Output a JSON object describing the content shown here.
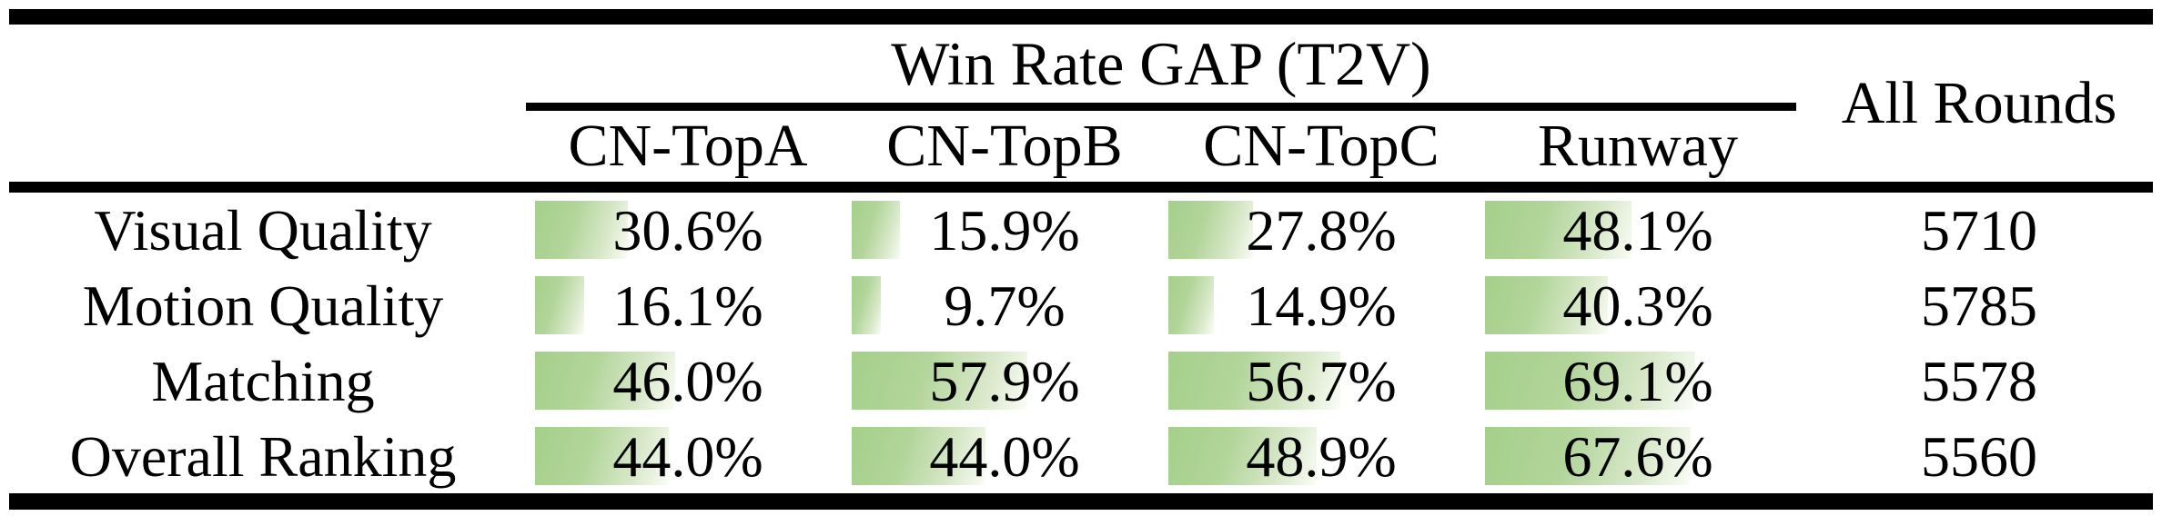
{
  "table": {
    "group_header": "Win Rate GAP (T2V)",
    "all_rounds_header": "All Rounds",
    "columns": [
      "CN-TopA",
      "CN-TopB",
      "CN-TopC",
      "Runway"
    ],
    "rows": [
      {
        "label": "Visual Quality",
        "cells": [
          {
            "pct": 30.6,
            "text": "30.6%"
          },
          {
            "pct": 15.9,
            "text": "15.9%"
          },
          {
            "pct": 27.8,
            "text": "27.8%"
          },
          {
            "pct": 48.1,
            "text": "48.1%"
          }
        ],
        "all_rounds": "5710"
      },
      {
        "label": "Motion Quality",
        "cells": [
          {
            "pct": 16.1,
            "text": "16.1%"
          },
          {
            "pct": 9.7,
            "text": "9.7%"
          },
          {
            "pct": 14.9,
            "text": "14.9%"
          },
          {
            "pct": 40.3,
            "text": "40.3%"
          }
        ],
        "all_rounds": "5785"
      },
      {
        "label": "Matching",
        "cells": [
          {
            "pct": 46.0,
            "text": "46.0%"
          },
          {
            "pct": 57.9,
            "text": "57.9%"
          },
          {
            "pct": 56.7,
            "text": "56.7%"
          },
          {
            "pct": 69.1,
            "text": "69.1%"
          }
        ],
        "all_rounds": "5578"
      },
      {
        "label": "Overall Ranking",
        "cells": [
          {
            "pct": 44.0,
            "text": "44.0%"
          },
          {
            "pct": 44.0,
            "text": "44.0%"
          },
          {
            "pct": 48.9,
            "text": "48.9%"
          },
          {
            "pct": 67.6,
            "text": "67.6%"
          }
        ],
        "all_rounds": "5560"
      }
    ],
    "colors": {
      "bar_green": "#a9d18e",
      "bar_fade": "#f6faf1",
      "rule_black": "#000000",
      "background": "#ffffff"
    },
    "bar_scale_note": "bar width = value% of column, max 100%"
  },
  "chart_data": {
    "type": "table",
    "title": "Win Rate GAP (T2V)",
    "categories": [
      "Visual Quality",
      "Motion Quality",
      "Matching",
      "Overall Ranking"
    ],
    "series": [
      {
        "name": "CN-TopA",
        "values": [
          30.6,
          16.1,
          46.0,
          44.0
        ]
      },
      {
        "name": "CN-TopB",
        "values": [
          15.9,
          9.7,
          57.9,
          44.0
        ]
      },
      {
        "name": "CN-TopC",
        "values": [
          27.8,
          14.9,
          56.7,
          48.9
        ]
      },
      {
        "name": "Runway",
        "values": [
          48.1,
          40.3,
          69.1,
          67.6
        ]
      },
      {
        "name": "All Rounds",
        "values": [
          5710,
          5785,
          5578,
          5560
        ]
      }
    ],
    "value_unit_t2v": "percent",
    "bar_range": [
      0,
      100
    ]
  }
}
